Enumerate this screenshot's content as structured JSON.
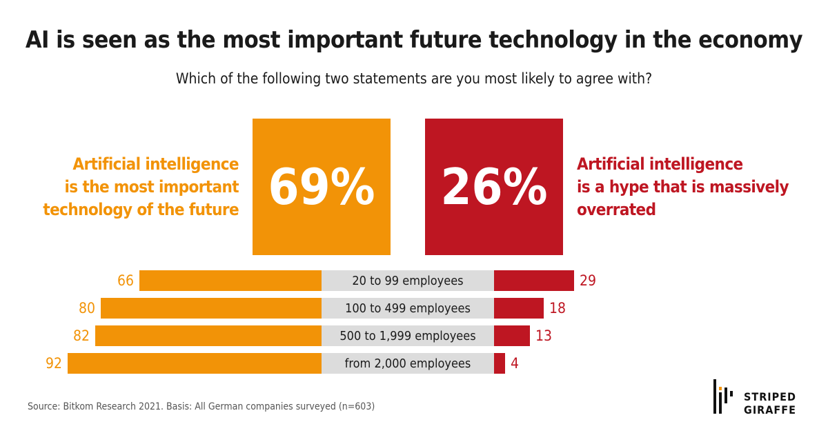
{
  "title": "AI is seen as the most important future technology in the economy",
  "subtitle": "Which of the following two statements are you most likely to agree with?",
  "colors": {
    "important": "#f29307",
    "hype": "#be1622",
    "category_bg": "#dcdcdc"
  },
  "chart_data": {
    "type": "bar",
    "totals": [
      {
        "name": "Artificial intelligence is the most important technology of the future",
        "lines": [
          "Artificial intelligence",
          "is the most important",
          "technology of the future"
        ],
        "value": 69,
        "label": "69%"
      },
      {
        "name": "Artificial intelligence is a hype that is massively overrated",
        "lines": [
          "Artificial intelligence",
          "is a hype that is massively",
          "overrated"
        ],
        "value": 26,
        "label": "26%"
      }
    ],
    "categories": [
      "20 to 99 employees",
      "100 to 499 employees",
      "500 to 1,999 employees",
      "from 2,000 employees"
    ],
    "series": [
      {
        "values": [
          66,
          80,
          82,
          92
        ]
      },
      {
        "values": [
          29,
          18,
          13,
          4
        ]
      }
    ],
    "unit": "%"
  },
  "source": "Source: Bitkom Research 2021. Basis: All German companies surveyed (n=603)",
  "logo": {
    "line1": "STRIPED",
    "line2": "GIRAFFE"
  }
}
